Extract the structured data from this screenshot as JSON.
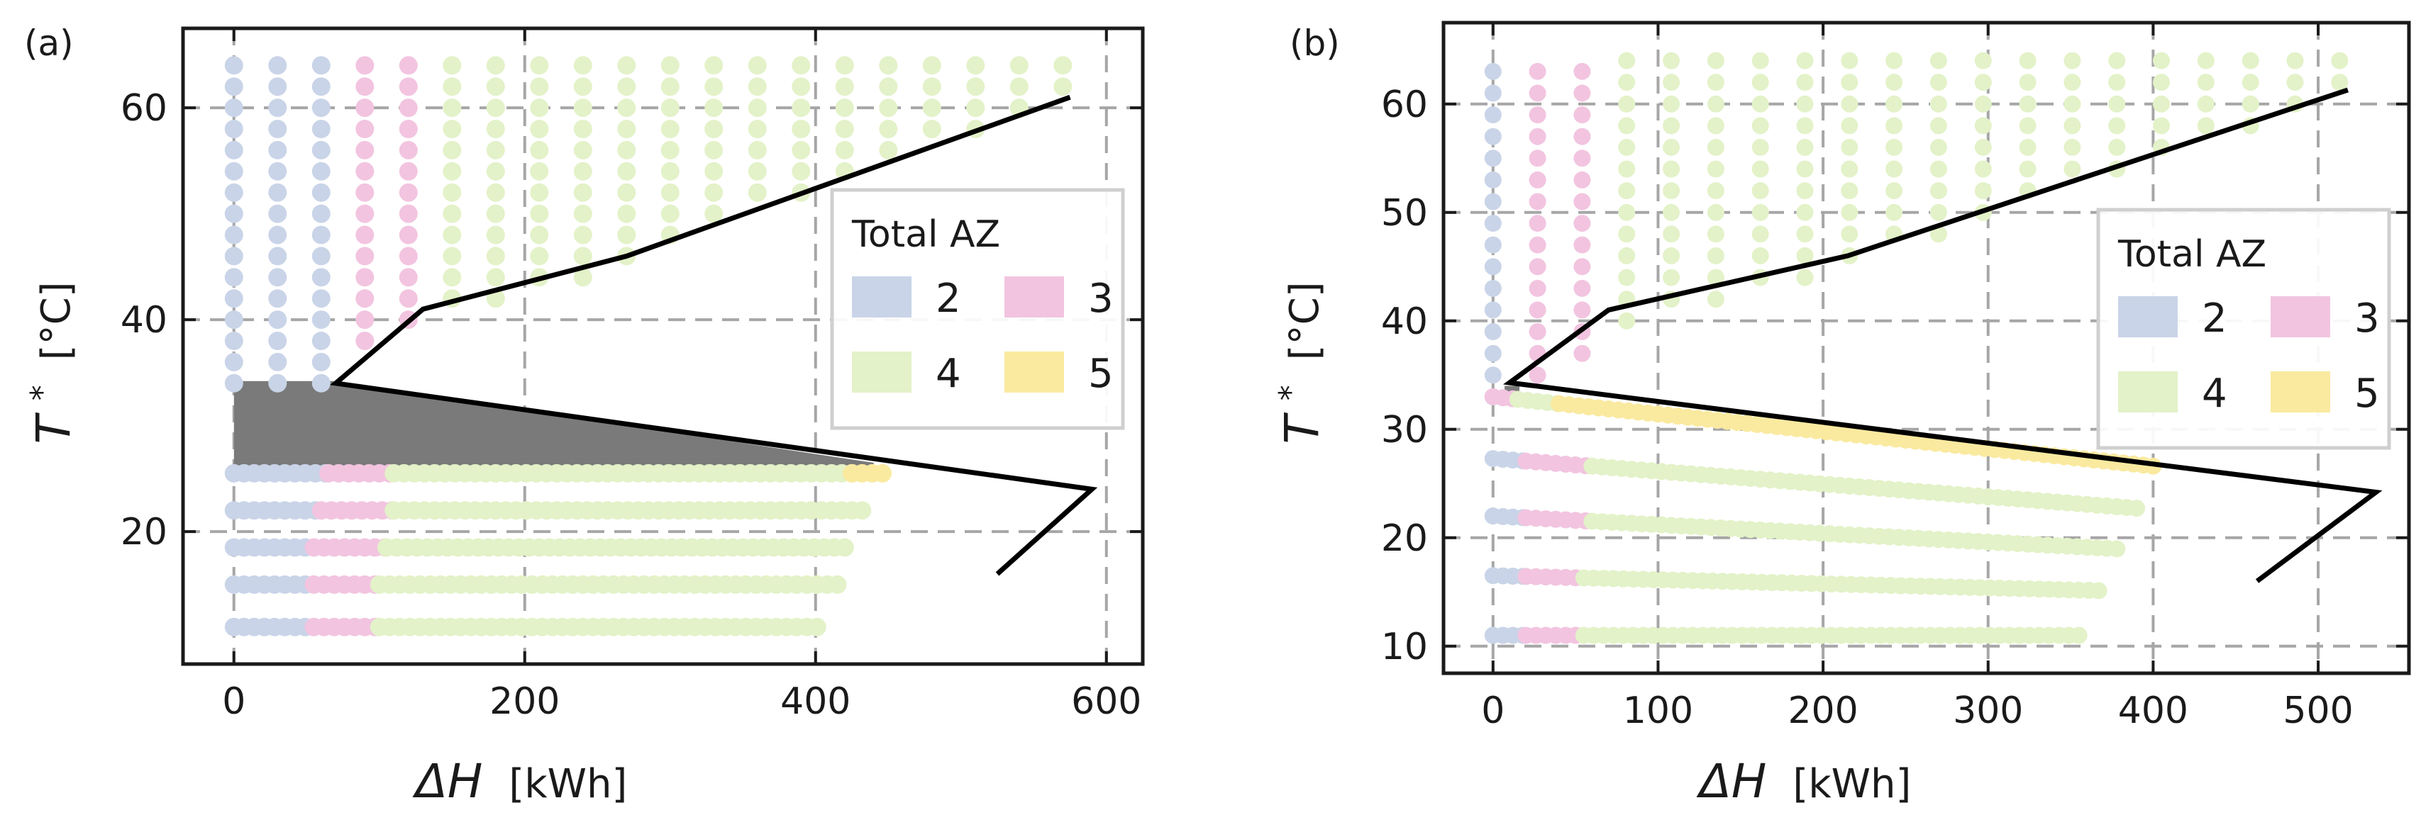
{
  "figure_title": "",
  "colors": {
    "az2": "#c9d4e8",
    "az3": "#f2c4e0",
    "az4": "#e3f2c8",
    "az5": "#faeaa0",
    "region": "#7a7a7a",
    "curve": "#000000",
    "grid": "#a6a6a6",
    "frame": "#1a1a1a"
  },
  "legend": {
    "title": "Total AZ",
    "items": [
      {
        "label": "2",
        "color": "#c9d4e8"
      },
      {
        "label": "3",
        "color": "#f2c4e0"
      },
      {
        "label": "4",
        "color": "#e3f2c8"
      },
      {
        "label": "5",
        "color": "#faeaa0"
      }
    ]
  },
  "chart_data": [
    {
      "panel_label": "(a)",
      "type": "scatter",
      "xlabel_symbol": "ΔH",
      "xlabel_unit": "[kWh]",
      "ylabel_symbol": "T",
      "ylabel_sup": "*",
      "ylabel_unit": "[°C]",
      "xlim": [
        -35,
        625
      ],
      "ylim": [
        7.5,
        67.5
      ],
      "xticks": [
        0,
        200,
        400,
        600
      ],
      "yticks": [
        20,
        40,
        60
      ],
      "grid": true,
      "legend_position": "center-right",
      "upper_block": {
        "t_range": [
          34,
          64
        ],
        "t_step": 2,
        "columns": [
          {
            "x": 0,
            "az": 2,
            "t_min": 34
          },
          {
            "x": 30,
            "az": 2,
            "t_min": 34
          },
          {
            "x": 60,
            "az": 2,
            "t_min": 34
          },
          {
            "x": 90,
            "az": 3,
            "t_min": 38
          },
          {
            "x": 120,
            "az": 3,
            "t_min": 40
          },
          {
            "x": 150,
            "az": 4,
            "t_min": 42
          },
          {
            "x": 180,
            "az": 4,
            "t_min": 42
          },
          {
            "x": 210,
            "az": 4,
            "t_min": 44
          },
          {
            "x": 240,
            "az": 4,
            "t_min": 44
          },
          {
            "x": 270,
            "az": 4,
            "t_min": 46
          },
          {
            "x": 300,
            "az": 4,
            "t_min": 48
          },
          {
            "x": 330,
            "az": 4,
            "t_min": 50
          },
          {
            "x": 360,
            "az": 4,
            "t_min": 52
          },
          {
            "x": 390,
            "az": 4,
            "t_min": 52
          },
          {
            "x": 420,
            "az": 4,
            "t_min": 54
          },
          {
            "x": 450,
            "az": 4,
            "t_min": 56
          },
          {
            "x": 480,
            "az": 4,
            "t_min": 58
          },
          {
            "x": 510,
            "az": 4,
            "t_min": 58
          },
          {
            "x": 540,
            "az": 4,
            "t_min": 60
          },
          {
            "x": 570,
            "az": 4,
            "t_min": 62
          }
        ]
      },
      "rows": [
        {
          "t0": 25.5,
          "t1": 25.5,
          "step": 7,
          "segments": [
            {
              "az": 2,
              "from": 0,
              "to": 65
            },
            {
              "az": 3,
              "from": 65,
              "to": 110
            },
            {
              "az": 4,
              "from": 110,
              "to": 425
            },
            {
              "az": 5,
              "from": 425,
              "to": 450
            }
          ]
        },
        {
          "t0": 22.0,
          "t1": 22.0,
          "step": 7,
          "segments": [
            {
              "az": 2,
              "from": 0,
              "to": 60
            },
            {
              "az": 3,
              "from": 60,
              "to": 110
            },
            {
              "az": 4,
              "from": 110,
              "to": 435
            }
          ]
        },
        {
          "t0": 18.5,
          "t1": 18.5,
          "step": 7,
          "segments": [
            {
              "az": 2,
              "from": 0,
              "to": 55
            },
            {
              "az": 3,
              "from": 55,
              "to": 105
            },
            {
              "az": 4,
              "from": 105,
              "to": 425
            }
          ]
        },
        {
          "t0": 15.0,
          "t1": 15.0,
          "step": 7,
          "segments": [
            {
              "az": 2,
              "from": 0,
              "to": 55
            },
            {
              "az": 3,
              "from": 55,
              "to": 100
            },
            {
              "az": 4,
              "from": 100,
              "to": 415
            }
          ]
        },
        {
          "t0": 11.0,
          "t1": 11.0,
          "step": 7,
          "segments": [
            {
              "az": 2,
              "from": 0,
              "to": 55
            },
            {
              "az": 3,
              "from": 55,
              "to": 100
            },
            {
              "az": 4,
              "from": 100,
              "to": 405
            }
          ]
        }
      ],
      "region": [
        [
          0,
          34.2
        ],
        [
          68,
          34.2
        ],
        [
          440,
          26.5
        ],
        [
          440,
          25.2
        ],
        [
          0,
          25.2
        ]
      ],
      "curve": [
        [
          575,
          61
        ],
        [
          270,
          46
        ],
        [
          130,
          41
        ],
        [
          70,
          34
        ],
        [
          590,
          24
        ],
        [
          525,
          16
        ]
      ]
    },
    {
      "panel_label": "(b)",
      "type": "scatter",
      "xlabel_symbol": "ΔH",
      "xlabel_unit": "[kWh]",
      "ylabel_symbol": "T",
      "ylabel_sup": "*",
      "ylabel_unit": "[°C]",
      "xlim": [
        -30,
        555
      ],
      "ylim": [
        7.5,
        67.5
      ],
      "xticks": [
        0,
        100,
        200,
        300,
        400,
        500
      ],
      "yticks": [
        10,
        20,
        30,
        40,
        50,
        60
      ],
      "grid": true,
      "legend_position": "center-right",
      "upper_block": {
        "t_range": [
          33,
          64
        ],
        "t_step": 2,
        "columns": [
          {
            "x": 0,
            "az": 2,
            "t_min": 33
          },
          {
            "x": 27,
            "az": 3,
            "t_min": 35
          },
          {
            "x": 54,
            "az": 3,
            "t_min": 37
          },
          {
            "x": 81,
            "az": 4,
            "t_min": 40
          },
          {
            "x": 108,
            "az": 4,
            "t_min": 42
          },
          {
            "x": 135,
            "az": 4,
            "t_min": 42
          },
          {
            "x": 162,
            "az": 4,
            "t_min": 44
          },
          {
            "x": 189,
            "az": 4,
            "t_min": 44
          },
          {
            "x": 216,
            "az": 4,
            "t_min": 46
          },
          {
            "x": 243,
            "az": 4,
            "t_min": 48
          },
          {
            "x": 270,
            "az": 4,
            "t_min": 48
          },
          {
            "x": 297,
            "az": 4,
            "t_min": 50
          },
          {
            "x": 324,
            "az": 4,
            "t_min": 52
          },
          {
            "x": 351,
            "az": 4,
            "t_min": 54
          },
          {
            "x": 378,
            "az": 4,
            "t_min": 54
          },
          {
            "x": 405,
            "az": 4,
            "t_min": 56
          },
          {
            "x": 432,
            "az": 4,
            "t_min": 58
          },
          {
            "x": 459,
            "az": 4,
            "t_min": 58
          },
          {
            "x": 486,
            "az": 4,
            "t_min": 60
          },
          {
            "x": 513,
            "az": 4,
            "t_min": 62
          }
        ]
      },
      "rows": [
        {
          "t0": 33.0,
          "t1": 26.6,
          "step": 6,
          "segments": [
            {
              "az": 3,
              "from": 0,
              "to": 15
            },
            {
              "az": 4,
              "from": 15,
              "to": 40
            },
            {
              "az": 5,
              "from": 40,
              "to": 400
            }
          ]
        },
        {
          "t0": 27.3,
          "t1": 22.6,
          "step": 6,
          "segments": [
            {
              "az": 2,
              "from": 0,
              "to": 20
            },
            {
              "az": 3,
              "from": 20,
              "to": 60
            },
            {
              "az": 4,
              "from": 60,
              "to": 390
            }
          ]
        },
        {
          "t0": 22.0,
          "t1": 18.8,
          "step": 6,
          "segments": [
            {
              "az": 2,
              "from": 0,
              "to": 20
            },
            {
              "az": 3,
              "from": 20,
              "to": 60
            },
            {
              "az": 4,
              "from": 60,
              "to": 380
            }
          ]
        },
        {
          "t0": 16.5,
          "t1": 15.0,
          "step": 6,
          "segments": [
            {
              "az": 2,
              "from": 0,
              "to": 20
            },
            {
              "az": 3,
              "from": 20,
              "to": 55
            },
            {
              "az": 4,
              "from": 55,
              "to": 370
            }
          ]
        },
        {
          "t0": 11.0,
          "t1": 11.0,
          "step": 6,
          "segments": [
            {
              "az": 2,
              "from": 0,
              "to": 20
            },
            {
              "az": 3,
              "from": 20,
              "to": 55
            },
            {
              "az": 4,
              "from": 55,
              "to": 360
            }
          ]
        }
      ],
      "region": [
        [
          7,
          34.0
        ],
        [
          16,
          34.0
        ],
        [
          16,
          32.2
        ],
        [
          7,
          32.2
        ]
      ],
      "curve": [
        [
          518,
          61.3
        ],
        [
          215,
          46
        ],
        [
          70,
          41
        ],
        [
          10,
          34.3
        ],
        [
          535,
          24.2
        ],
        [
          463,
          16
        ]
      ]
    }
  ]
}
